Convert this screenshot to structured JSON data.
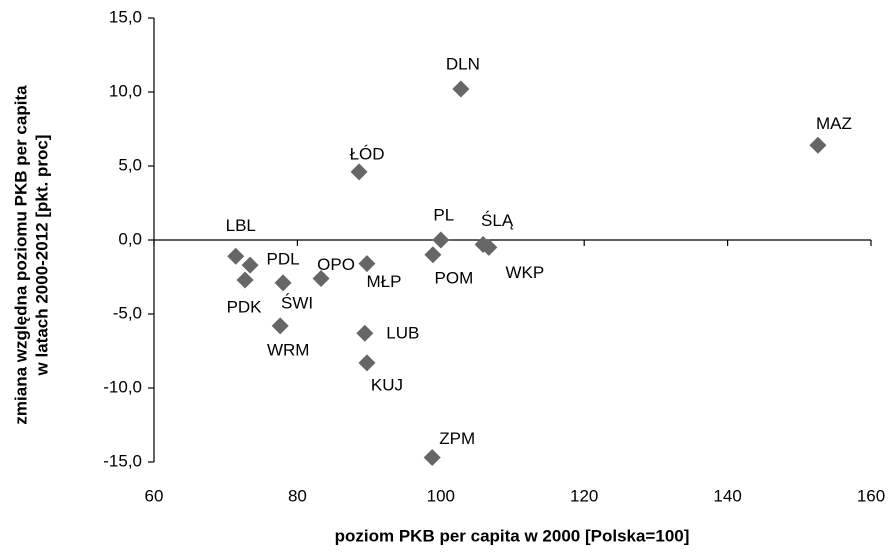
{
  "chart_data": {
    "type": "scatter",
    "x_label": "poziom PKB per capita w 2000 [Polska=100]",
    "y_label": [
      "zmiana względna poziomu PKB per capita",
      "w latach 2000-2012 [pkt. proc]"
    ],
    "color": "#666666",
    "labels": [
      "DLN",
      "MAZ",
      "ŁÓD",
      "PL",
      "ŚLĄ",
      "WKP",
      "LBL",
      "PDL",
      "PDK",
      "ŚWI",
      "OPO",
      "MŁP",
      "POM",
      "WRM",
      "LUB",
      "KUJ",
      "ZPM"
    ],
    "x": [
      102.8,
      152.6,
      88.6,
      100,
      105.9,
      106.7,
      71.4,
      73.4,
      72.7,
      78.0,
      83.3,
      89.7,
      98.9,
      77.6,
      89.4,
      89.7,
      98.8
    ],
    "values": [
      10.2,
      6.4,
      4.6,
      0,
      -0.3,
      -0.5,
      -1.1,
      -1.7,
      -2.7,
      -2.9,
      -2.6,
      -1.6,
      -1.0,
      -5.8,
      -6.3,
      -8.3,
      -14.7
    ],
    "xlim": [
      60,
      160
    ],
    "xticks": [
      60,
      80,
      100,
      120,
      140,
      160
    ],
    "ylim": [
      -15,
      15
    ],
    "yticks": [
      {
        "value": -15,
        "label": "-15,0"
      },
      {
        "value": -10,
        "label": "-10,0"
      },
      {
        "value": -5,
        "label": "-5,0"
      },
      {
        "value": 0,
        "label": "0,0"
      },
      {
        "value": 5,
        "label": "5,0"
      },
      {
        "value": 10,
        "label": "10,0"
      },
      {
        "value": 15,
        "label": "15,0"
      }
    ]
  }
}
